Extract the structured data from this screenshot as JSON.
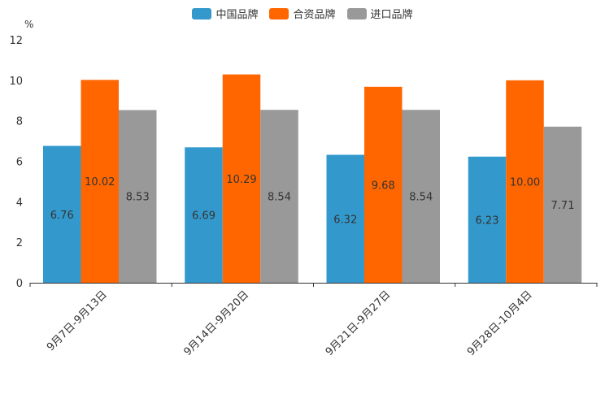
{
  "chart_data": {
    "type": "bar",
    "unit": "%",
    "categories": [
      "9月7日-9月13日",
      "9月14日-9月20日",
      "9月21日-9月27日",
      "9月28日-10月4日"
    ],
    "series": [
      {
        "name": "中国品牌",
        "color": "#3399CC",
        "values": [
          6.76,
          6.69,
          6.32,
          6.23
        ],
        "labels": [
          "6.76",
          "6.69",
          "6.32",
          "6.23"
        ]
      },
      {
        "name": "合资品牌",
        "color": "#FF6600",
        "values": [
          10.02,
          10.29,
          9.68,
          10.0
        ],
        "labels": [
          "10.02",
          "10.29",
          "9.68",
          "10.00"
        ]
      },
      {
        "name": "进口品牌",
        "color": "#999999",
        "values": [
          8.53,
          8.54,
          8.54,
          7.71
        ],
        "labels": [
          "8.53",
          "8.54",
          "8.54",
          "7.71"
        ]
      }
    ],
    "ylim": [
      0,
      12
    ],
    "yticks": [
      "0",
      "2",
      "4",
      "6",
      "8",
      "10",
      "12"
    ],
    "legend_position": "top-center",
    "grid": false
  }
}
